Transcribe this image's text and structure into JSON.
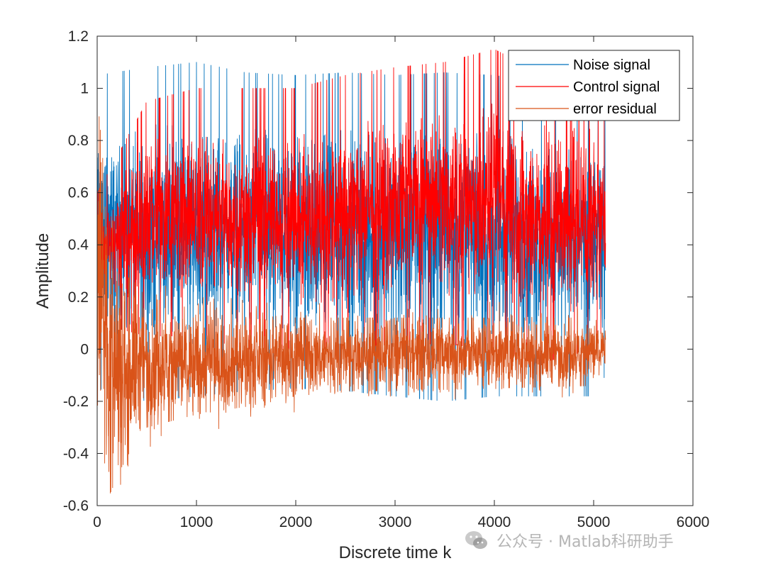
{
  "chart_data": {
    "type": "line",
    "title": "",
    "xlabel": "Discrete time k",
    "ylabel": "Amplitude",
    "xlim": [
      0,
      6000
    ],
    "ylim": [
      -0.6,
      1.2
    ],
    "xticks": [
      0,
      1000,
      2000,
      3000,
      4000,
      5000,
      6000
    ],
    "xtick_labels": [
      "0",
      "1000",
      "2000",
      "3000",
      "4000",
      "5000",
      "6000"
    ],
    "yticks": [
      -0.6,
      -0.4,
      -0.2,
      0,
      0.2,
      0.4,
      0.6,
      0.8,
      1,
      1.2
    ],
    "ytick_labels": [
      "-0.6",
      "-0.4",
      "-0.2",
      "0",
      "0.2",
      "0.4",
      "0.6",
      "0.8",
      "1",
      "1.2"
    ],
    "grid": false,
    "legend_position": "top-right",
    "n_samples": 5120,
    "series": [
      {
        "name": "Noise signal",
        "color": "#0072BD",
        "profile": "noise",
        "x": [
          0,
          500,
          1000,
          1500,
          2000,
          2500,
          3000,
          3500,
          4000,
          4500,
          5000,
          5120
        ],
        "upper": [
          1.05,
          1.08,
          1.1,
          1.06,
          1.05,
          1.06,
          1.05,
          1.06,
          1.05,
          1.02,
          0.95,
          0.9
        ],
        "lower": [
          -0.15,
          -0.2,
          -0.18,
          -0.16,
          -0.15,
          -0.16,
          -0.18,
          -0.2,
          -0.18,
          -0.18,
          -0.18,
          -0.1
        ]
      },
      {
        "name": "Control signal",
        "color": "#FF0000",
        "profile": "control",
        "x": [
          0,
          500,
          1000,
          1500,
          2000,
          2500,
          3000,
          3500,
          4000,
          4500,
          5000,
          5120
        ],
        "upper": [
          0.6,
          0.95,
          1.0,
          1.0,
          1.0,
          1.05,
          1.08,
          1.1,
          1.15,
          1.05,
          1.0,
          0.9
        ],
        "lower": [
          0.1,
          0.05,
          0.05,
          0.0,
          0.0,
          0.0,
          0.02,
          0.02,
          0.0,
          -0.05,
          0.0,
          0.1
        ]
      },
      {
        "name": "error residual",
        "color": "#D95319",
        "profile": "error",
        "x": [
          0,
          100,
          250,
          500,
          1000,
          1500,
          2000,
          2500,
          3000,
          4000,
          5000,
          5120
        ],
        "upper": [
          0.9,
          0.6,
          0.3,
          0.2,
          0.15,
          0.15,
          0.12,
          0.12,
          0.12,
          0.12,
          0.12,
          0.08
        ],
        "lower": [
          -0.2,
          -0.58,
          -0.45,
          -0.3,
          -0.25,
          -0.22,
          -0.18,
          -0.16,
          -0.16,
          -0.15,
          -0.14,
          -0.05
        ]
      }
    ]
  },
  "watermark": {
    "icon": "wechat-icon",
    "text": "公众号 · Matlab科研助手"
  }
}
